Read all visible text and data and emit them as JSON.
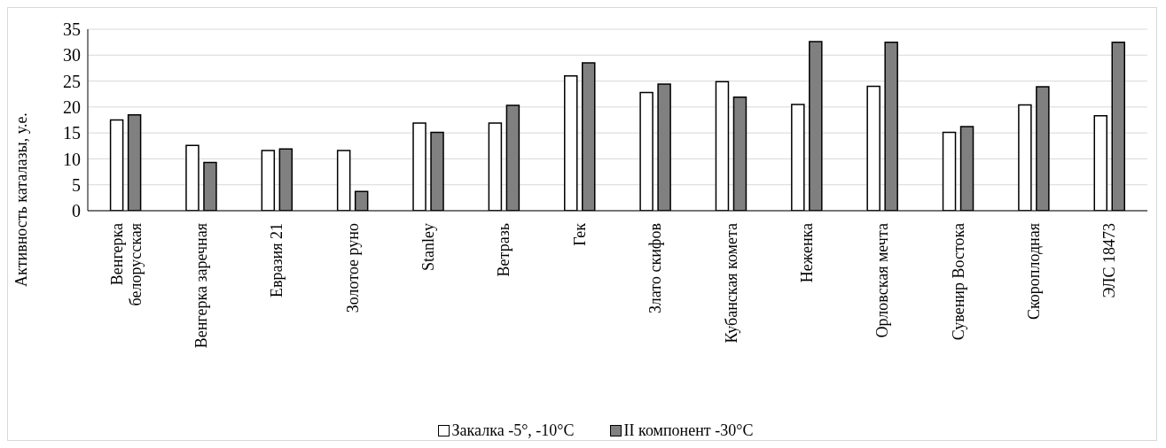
{
  "chart_data": {
    "type": "bar",
    "ylabel": "Активность каталазы, у.е.",
    "categories": [
      "Венгерка\nбелорусская",
      "Венгерка заречная",
      "Евразия 21",
      "Золотое руно",
      "Stanley",
      "Ветразь",
      "Гек",
      "Злато скифов",
      "Кубанская комета",
      "Неженка",
      "Орловская мечта",
      "Сувенир Востока",
      "Скороплодная",
      "ЭЛС 18473"
    ],
    "series": [
      {
        "name": "Закалка -5°, -10°C",
        "color": "#ffffff",
        "values": [
          17.5,
          12.6,
          11.6,
          11.6,
          16.9,
          16.9,
          26,
          22.8,
          24.9,
          20.5,
          24,
          15.1,
          20.4,
          18.3
        ]
      },
      {
        "name": "II компонент -30°C",
        "color": "#808080",
        "values": [
          18.5,
          9.3,
          11.9,
          3.7,
          15.1,
          20.3,
          28.5,
          24.4,
          21.9,
          32.6,
          32.5,
          16.2,
          23.9,
          32.5
        ]
      }
    ],
    "ylim": [
      0,
      35
    ],
    "yticks": [
      0,
      5,
      10,
      15,
      20,
      25,
      30,
      35
    ],
    "grid": "y",
    "legend": "bottom"
  }
}
